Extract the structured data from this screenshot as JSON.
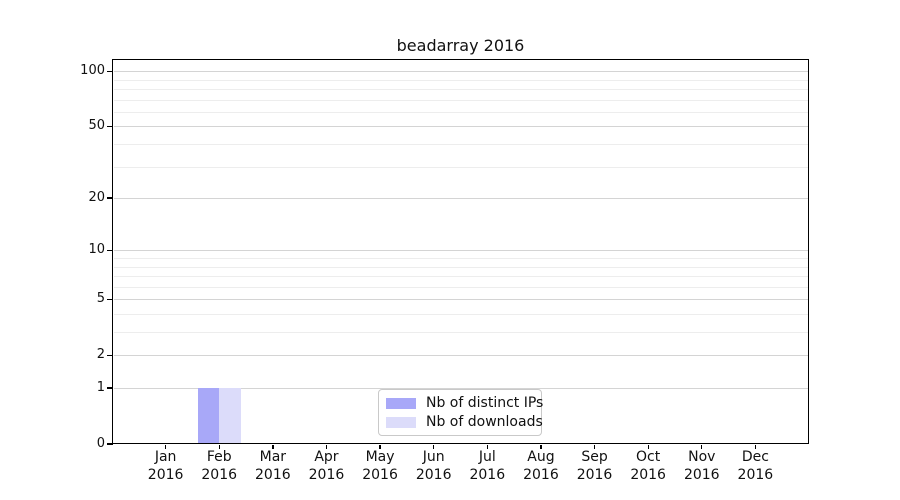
{
  "chart_data": {
    "type": "bar",
    "title": "beadarray 2016",
    "categories": [
      "Jan",
      "Feb",
      "Mar",
      "Apr",
      "May",
      "Jun",
      "Jul",
      "Aug",
      "Sep",
      "Oct",
      "Nov",
      "Dec"
    ],
    "x_year": "2016",
    "series": [
      {
        "name": "Nb of distinct IPs",
        "color": "#a8a8f8",
        "values": [
          0,
          1,
          0,
          0,
          0,
          0,
          0,
          0,
          0,
          0,
          0,
          0
        ]
      },
      {
        "name": "Nb of downloads",
        "color": "#dcdcfa",
        "values": [
          0,
          1,
          0,
          0,
          0,
          0,
          0,
          0,
          0,
          0,
          0,
          0
        ]
      }
    ],
    "yscale": "log1p",
    "ylim": [
      0,
      115
    ],
    "y_tick_labels": [
      0,
      1,
      2,
      5,
      10,
      20,
      50,
      100
    ],
    "y_minor_gridlines": [
      3,
      4,
      6,
      7,
      8,
      9,
      30,
      40,
      60,
      70,
      80,
      90
    ],
    "grid": "horizontal-only",
    "legend_position": "bottom-center-inside",
    "colors": {
      "major_grid": "#d4d4d4",
      "minor_grid": "#ededed",
      "spine": "#000000"
    }
  }
}
